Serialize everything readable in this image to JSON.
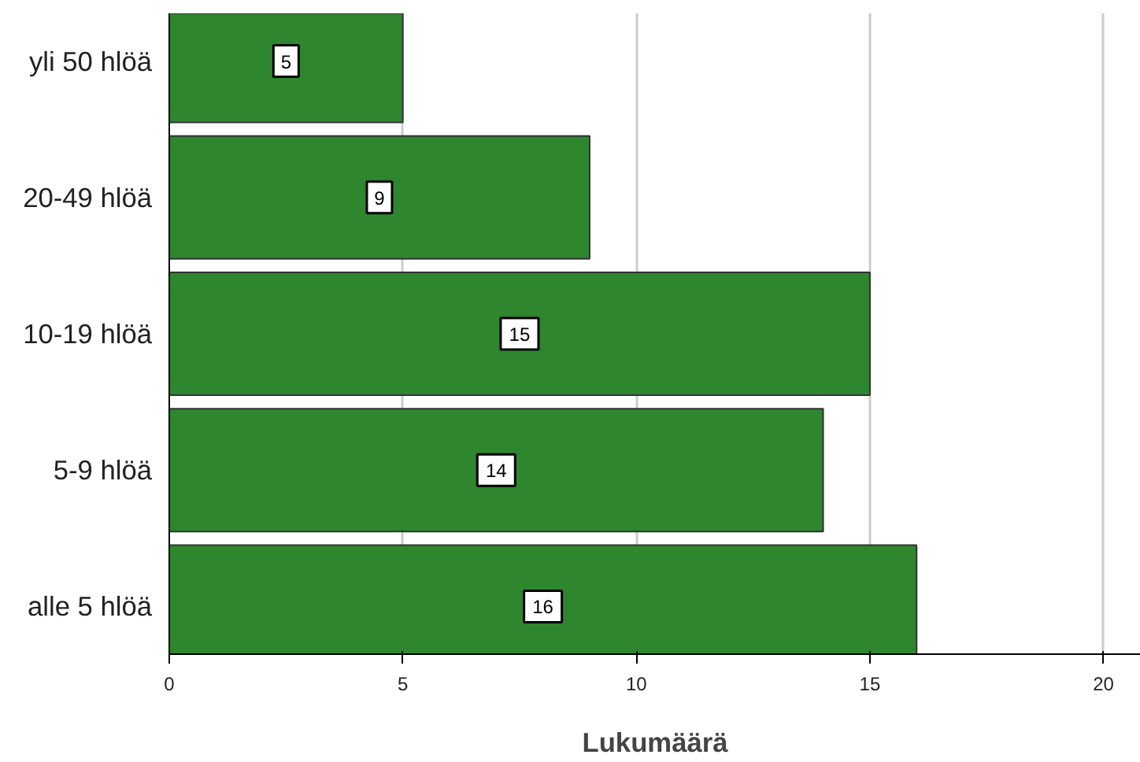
{
  "chart_data": {
    "type": "bar",
    "orientation": "horizontal",
    "xlabel": "Lukumäärä",
    "categories": [
      "yli 50 hlöä",
      "20-49 hlöä",
      "10-19 hlöä",
      "5-9 hlöä",
      "alle 5 hlöä"
    ],
    "values": [
      5,
      9,
      15,
      14,
      16
    ],
    "color": "#2e862e",
    "xlim": [
      0,
      20.8
    ],
    "xticks": [
      0,
      5,
      10,
      15,
      20
    ],
    "grid": "x",
    "data_labels": true
  }
}
